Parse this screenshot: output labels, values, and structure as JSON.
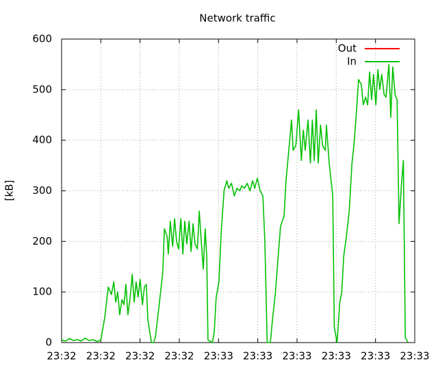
{
  "chart_data": {
    "type": "line",
    "title": "Network traffic",
    "y_label": "[kB]",
    "x": [
      0,
      1,
      2,
      3,
      4,
      5,
      6,
      7,
      8,
      9,
      10,
      11,
      11.9,
      12.7,
      13.3,
      13.8,
      14.3,
      14.8,
      15.4,
      15.9,
      16.4,
      16.9,
      17.5,
      18,
      18.5,
      19,
      19.5,
      20,
      20.6,
      21.1,
      21.6,
      22,
      22.9,
      23.4,
      23.9,
      24.8,
      25.8,
      26.2,
      26.9,
      27.2,
      27.7,
      28.3,
      28.8,
      29.3,
      29.8,
      30.4,
      30.9,
      31.4,
      31.9,
      32.5,
      33,
      33.5,
      34,
      34.6,
      35.1,
      35.6,
      36.1,
      36.6,
      37,
      37.3,
      38.4,
      38.9,
      39.4,
      40.1,
      40.7,
      41.4,
      42.1,
      42.6,
      43.3,
      44,
      44.7,
      45.4,
      45.9,
      46.6,
      47.3,
      48,
      48.7,
      49.2,
      49.9,
      50.6,
      51.3,
      51.8,
      52.4,
      53.2,
      53.8,
      54.5,
      55,
      55.8,
      56.7,
      57.2,
      57.9,
      58.6,
      59,
      59.7,
      60.4,
      61.1,
      61.6,
      62.1,
      62.8,
      63.4,
      63.9,
      64.4,
      64.9,
      65.4,
      66,
      66.5,
      67.2,
      67.5,
      68.2,
      69.1,
      69.5,
      70.2,
      70.9,
      71.4,
      71.9,
      72.6,
      73.3,
      74,
      74.5,
      75,
      75.7,
      76.4,
      76.9,
      77.5,
      78,
      78.5,
      79,
      79.5,
      80.1,
      80.6,
      81.1,
      81.6,
      82.2,
      82.7,
      83.4,
      83.9,
      84.4,
      85,
      85.5,
      86,
      86.6,
      87.1,
      87.6,
      88.3
    ],
    "series": [
      {
        "name": "Out",
        "color": "#ff0000",
        "values": [
          null,
          null,
          null,
          null,
          null,
          null,
          null,
          null,
          null,
          null,
          null,
          null,
          null,
          null,
          null,
          null,
          null,
          null,
          null,
          null,
          null,
          null,
          null,
          null,
          null,
          null,
          null,
          null,
          null,
          null,
          null,
          null,
          null,
          null,
          null,
          null,
          null,
          null,
          null,
          null,
          null,
          null,
          null,
          null,
          null,
          null,
          null,
          null,
          null,
          null,
          null,
          null,
          null,
          null,
          null,
          null,
          null,
          null,
          null,
          null,
          null,
          null,
          null,
          null,
          null,
          null,
          null,
          null,
          null,
          null,
          null,
          null,
          null,
          null,
          null,
          null,
          null,
          null,
          null,
          null,
          null,
          null,
          null,
          null,
          null,
          null,
          null,
          null,
          null,
          null,
          null,
          null,
          null,
          null,
          null,
          null,
          null,
          null,
          null,
          null,
          null,
          null,
          null,
          null,
          null,
          null,
          null,
          null,
          null,
          null,
          null,
          null,
          null,
          null,
          null,
          null,
          null,
          null,
          null,
          null,
          null,
          null,
          null,
          null,
          null,
          null,
          null,
          null,
          null,
          null,
          null,
          null,
          null,
          null,
          null,
          null,
          null,
          null,
          null,
          null,
          null,
          null,
          null,
          null
        ]
      },
      {
        "name": "In",
        "color": "#00c000",
        "values": [
          5,
          3,
          8,
          4,
          6,
          3,
          9,
          4,
          6,
          2,
          5,
          50,
          110,
          95,
          120,
          80,
          100,
          55,
          85,
          75,
          115,
          55,
          90,
          135,
          80,
          120,
          90,
          125,
          75,
          110,
          115,
          45,
          0,
          0,
          10,
          70,
          140,
          225,
          210,
          175,
          240,
          190,
          245,
          200,
          185,
          245,
          175,
          240,
          195,
          240,
          180,
          235,
          195,
          185,
          260,
          200,
          145,
          225,
          170,
          5,
          0,
          20,
          90,
          120,
          220,
          300,
          320,
          305,
          315,
          290,
          305,
          300,
          310,
          305,
          315,
          300,
          320,
          305,
          325,
          300,
          290,
          200,
          0,
          0,
          50,
          100,
          150,
          230,
          250,
          320,
          380,
          440,
          380,
          390,
          460,
          360,
          420,
          380,
          440,
          355,
          440,
          360,
          460,
          355,
          430,
          390,
          380,
          430,
          355,
          290,
          30,
          0,
          80,
          100,
          170,
          210,
          260,
          355,
          390,
          440,
          520,
          510,
          470,
          485,
          470,
          535,
          480,
          530,
          470,
          540,
          500,
          530,
          490,
          485,
          550,
          445,
          545,
          490,
          480,
          235,
          310,
          360,
          10,
          0
        ]
      }
    ],
    "xlim": [
      0,
      90
    ],
    "xticks": [
      {
        "value": 0,
        "label": "23:32"
      },
      {
        "value": 10,
        "label": "23:32"
      },
      {
        "value": 20,
        "label": "23:32"
      },
      {
        "value": 30,
        "label": "23:32"
      },
      {
        "value": 40,
        "label": "23:33"
      },
      {
        "value": 50,
        "label": "23:33"
      },
      {
        "value": 60,
        "label": "23:33"
      },
      {
        "value": 70,
        "label": "23:33"
      },
      {
        "value": 80,
        "label": "23:33"
      },
      {
        "value": 90,
        "label": "23:33"
      }
    ],
    "ylim": [
      0,
      600
    ],
    "yticks": [
      0,
      100,
      200,
      300,
      400,
      500,
      600
    ],
    "grid": true,
    "legend": "top-right"
  }
}
